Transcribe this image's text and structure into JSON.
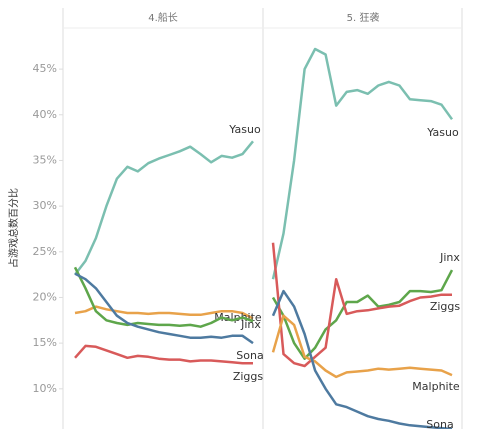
{
  "chart_data": [
    {
      "type": "line",
      "title": "4.船长",
      "ylabel": "占游戏总数百分比",
      "ylim": [
        5.6,
        49.5
      ],
      "yticks": [
        {
          "value": 10,
          "label": "10%"
        },
        {
          "value": 15,
          "label": "15%"
        },
        {
          "value": 20,
          "label": "20%"
        },
        {
          "value": 25,
          "label": "25%"
        },
        {
          "value": 30,
          "label": "30%"
        },
        {
          "value": 35,
          "label": "35%"
        },
        {
          "value": 40,
          "label": "40%"
        },
        {
          "value": 45,
          "label": "45%"
        }
      ],
      "series": [
        {
          "name": "Yasuo",
          "color": "#7bbfb0",
          "values": [
            22.5,
            24,
            26.5,
            30,
            33,
            34.3,
            33.8,
            34.7,
            35.2,
            35.6,
            36,
            36.5,
            35.7,
            34.8,
            35.5,
            35.3,
            35.7,
            37.1
          ]
        },
        {
          "name": "Malphite",
          "color": "#e8a24a",
          "values": [
            18.3,
            18.5,
            19,
            18.7,
            18.5,
            18.3,
            18.3,
            18.2,
            18.3,
            18.3,
            18.2,
            18.1,
            18.1,
            18.3,
            18.5,
            18.5,
            18.3,
            17.7
          ]
        },
        {
          "name": "Jinx",
          "color": "#5ea64b",
          "values": [
            23.3,
            21,
            18.5,
            17.5,
            17.2,
            17,
            17.2,
            17.1,
            17,
            17,
            16.9,
            17,
            16.8,
            17.2,
            17.8,
            17.5,
            17.8,
            17.4
          ]
        },
        {
          "name": "Sona",
          "color": "#4e7aa0",
          "values": [
            22.6,
            22,
            21,
            19.5,
            18,
            17.2,
            16.8,
            16.5,
            16.2,
            16,
            15.8,
            15.6,
            15.6,
            15.7,
            15.6,
            15.8,
            15.8,
            15
          ]
        },
        {
          "name": "Ziggs",
          "color": "#d85a5a",
          "values": [
            13.4,
            14.7,
            14.6,
            14.2,
            13.8,
            13.4,
            13.6,
            13.5,
            13.3,
            13.2,
            13.2,
            13,
            13.1,
            13.1,
            13,
            12.9,
            12.8,
            12.8
          ]
        }
      ]
    },
    {
      "type": "line",
      "title": "5. 狂袭",
      "ylim": [
        5.6,
        49.5
      ],
      "series": [
        {
          "name": "Yasuo",
          "color": "#7bbfb0",
          "values": [
            22,
            27,
            35,
            45,
            47.2,
            46.6,
            41,
            42.5,
            42.7,
            42.3,
            43.2,
            43.6,
            43.2,
            41.7,
            41.6,
            41.5,
            41.1,
            39.5
          ]
        },
        {
          "name": "Jinx",
          "color": "#5ea64b",
          "values": [
            20,
            18,
            15,
            13.3,
            14.5,
            16.5,
            17.5,
            19.5,
            19.5,
            20.2,
            19,
            19.2,
            19.5,
            20.7,
            20.7,
            20.6,
            20.8,
            23
          ]
        },
        {
          "name": "Ziggs",
          "color": "#d85a5a",
          "values": [
            26,
            13.8,
            12.8,
            12.5,
            13.5,
            14.5,
            22,
            18.2,
            18.5,
            18.6,
            18.8,
            19,
            19.1,
            19.6,
            20,
            20.1,
            20.3,
            20.3
          ]
        },
        {
          "name": "Malphite",
          "color": "#e8a24a",
          "values": [
            14,
            18,
            17,
            13.5,
            13,
            12,
            11.3,
            11.8,
            11.9,
            12,
            12.2,
            12.1,
            12.2,
            12.3,
            12.2,
            12.1,
            12,
            11.5
          ]
        },
        {
          "name": "Sona",
          "color": "#4e7aa0",
          "values": [
            18,
            20.7,
            19,
            16,
            12,
            10,
            8.3,
            8,
            7.5,
            7,
            6.7,
            6.5,
            6.2,
            6,
            5.9,
            5.8,
            5.7,
            5.6
          ]
        }
      ]
    }
  ]
}
